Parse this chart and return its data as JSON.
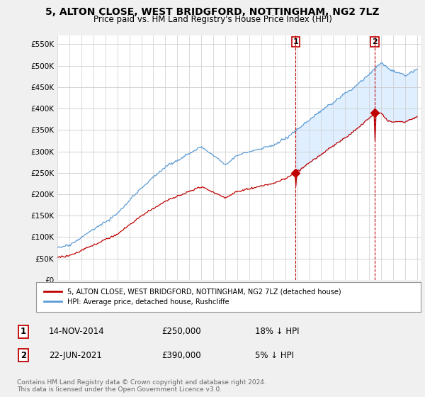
{
  "title": "5, ALTON CLOSE, WEST BRIDGFORD, NOTTINGHAM, NG2 7LZ",
  "subtitle": "Price paid vs. HM Land Registry's House Price Index (HPI)",
  "ylim": [
    0,
    570000
  ],
  "yticks": [
    0,
    50000,
    100000,
    150000,
    200000,
    250000,
    300000,
    350000,
    400000,
    450000,
    500000,
    550000
  ],
  "ytick_labels": [
    "£0",
    "£50K",
    "£100K",
    "£150K",
    "£200K",
    "£250K",
    "£300K",
    "£350K",
    "£400K",
    "£450K",
    "£500K",
    "£550K"
  ],
  "hpi_color": "#5b9bd5",
  "price_color": "#c00000",
  "vline_color": "#c00000",
  "fill_color": "#ddeeff",
  "sale1_year": 2014.87,
  "sale1_price": 250000,
  "sale2_year": 2021.47,
  "sale2_price": 390000,
  "legend_line1": "5, ALTON CLOSE, WEST BRIDGFORD, NOTTINGHAM, NG2 7LZ (detached house)",
  "legend_line2": "HPI: Average price, detached house, Rushcliffe",
  "table_row1": [
    "1",
    "14-NOV-2014",
    "£250,000",
    "18% ↓ HPI"
  ],
  "table_row2": [
    "2",
    "22-JUN-2021",
    "£390,000",
    "5% ↓ HPI"
  ],
  "footnote": "Contains HM Land Registry data © Crown copyright and database right 2024.\nThis data is licensed under the Open Government Licence v3.0.",
  "bg_color": "#f0f0f0",
  "plot_bg_color": "#ffffff",
  "grid_color": "#cccccc"
}
